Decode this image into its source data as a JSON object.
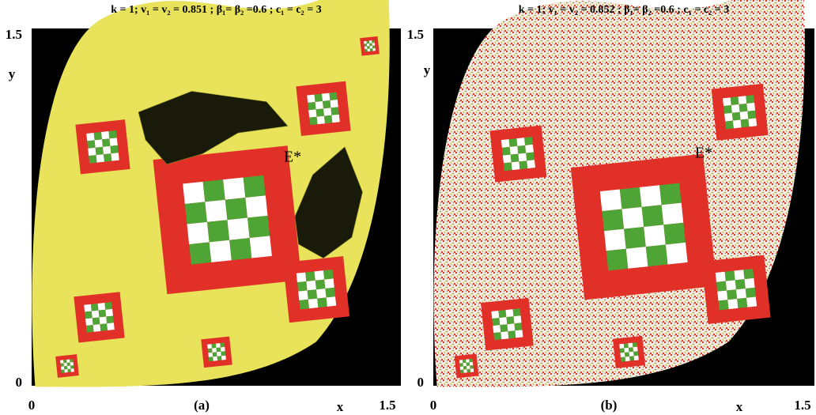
{
  "chart_data": [
    {
      "type": "basin",
      "title": "k = 1;   v₁ = v₂ = 0.851 ;   β₁= β₂ =0.6 ;  c₁ = c₂ = 3",
      "xlabel": "x",
      "ylabel": "y",
      "panel_label": "(a)",
      "annotation": "E*",
      "xlim": [
        0,
        1.5
      ],
      "ylim": [
        0,
        1.5
      ],
      "xticks": [
        0,
        1.5
      ],
      "yticks": [
        0,
        1.5
      ]
    },
    {
      "type": "basin",
      "title": "k = 1;   v₁ = v₂ = 0.852 ;   β₁= β₂ =0.6 ;  c₁ = c₂ = 3",
      "xlabel": "x",
      "ylabel": "y",
      "panel_label": "(b)",
      "annotation": "E*",
      "xlim": [
        0,
        1.5
      ],
      "ylim": [
        0,
        1.5
      ],
      "xticks": [
        0,
        1.5
      ],
      "yticks": [
        0,
        1.5
      ]
    }
  ]
}
